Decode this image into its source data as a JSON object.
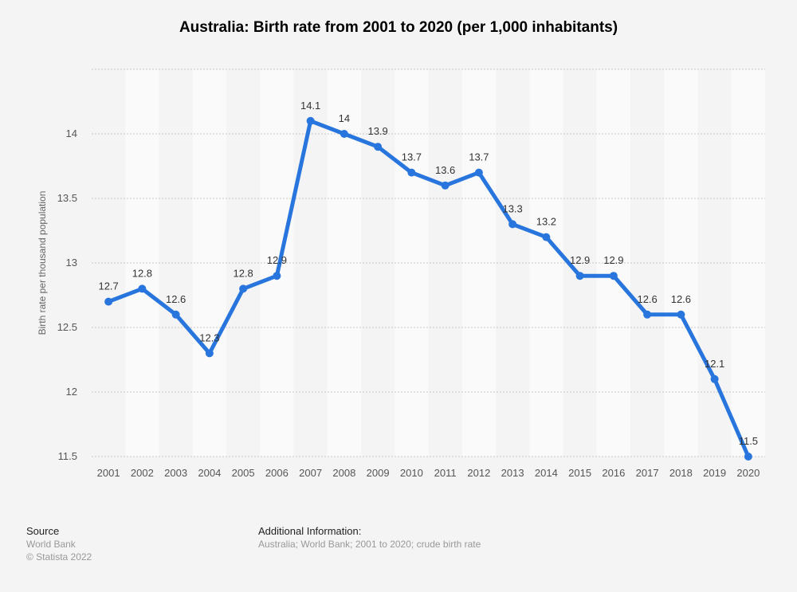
{
  "chart_data": {
    "type": "line",
    "title": "Australia: Birth rate from 2001 to 2020 (per 1,000 inhabitants)",
    "xlabel": "",
    "ylabel": "Birth rate per thousand population",
    "categories": [
      "2001",
      "2002",
      "2003",
      "2004",
      "2005",
      "2006",
      "2007",
      "2008",
      "2009",
      "2010",
      "2011",
      "2012",
      "2013",
      "2014",
      "2015",
      "2016",
      "2017",
      "2018",
      "2019",
      "2020"
    ],
    "values": [
      12.7,
      12.8,
      12.6,
      12.3,
      12.8,
      12.9,
      14.1,
      14,
      13.9,
      13.7,
      13.6,
      13.7,
      13.3,
      13.2,
      12.9,
      12.9,
      12.6,
      12.6,
      12.1,
      11.5
    ],
    "value_labels": [
      "12.7",
      "12.8",
      "12.6",
      "12.3",
      "12.8",
      "12.9",
      "14.1",
      "14",
      "13.9",
      "13.7",
      "13.6",
      "13.7",
      "13.3",
      "13.2",
      "12.9",
      "12.9",
      "12.6",
      "12.6",
      "12.1",
      "11.5"
    ],
    "yticks": [
      11.5,
      12,
      12.5,
      13,
      13.5,
      14,
      14.5
    ],
    "ytick_labels": [
      "11.5",
      "12",
      "12.5",
      "13",
      "13.5",
      "14",
      ""
    ],
    "ylim": [
      11.5,
      14.5
    ],
    "grid": true,
    "line_color": "#2876dd"
  },
  "footer": {
    "source_heading": "Source",
    "source": "World Bank",
    "copyright": "© Statista 2022",
    "info_heading": "Additional Information:",
    "info": "Australia; World Bank; 2001 to 2020; crude birth rate"
  }
}
